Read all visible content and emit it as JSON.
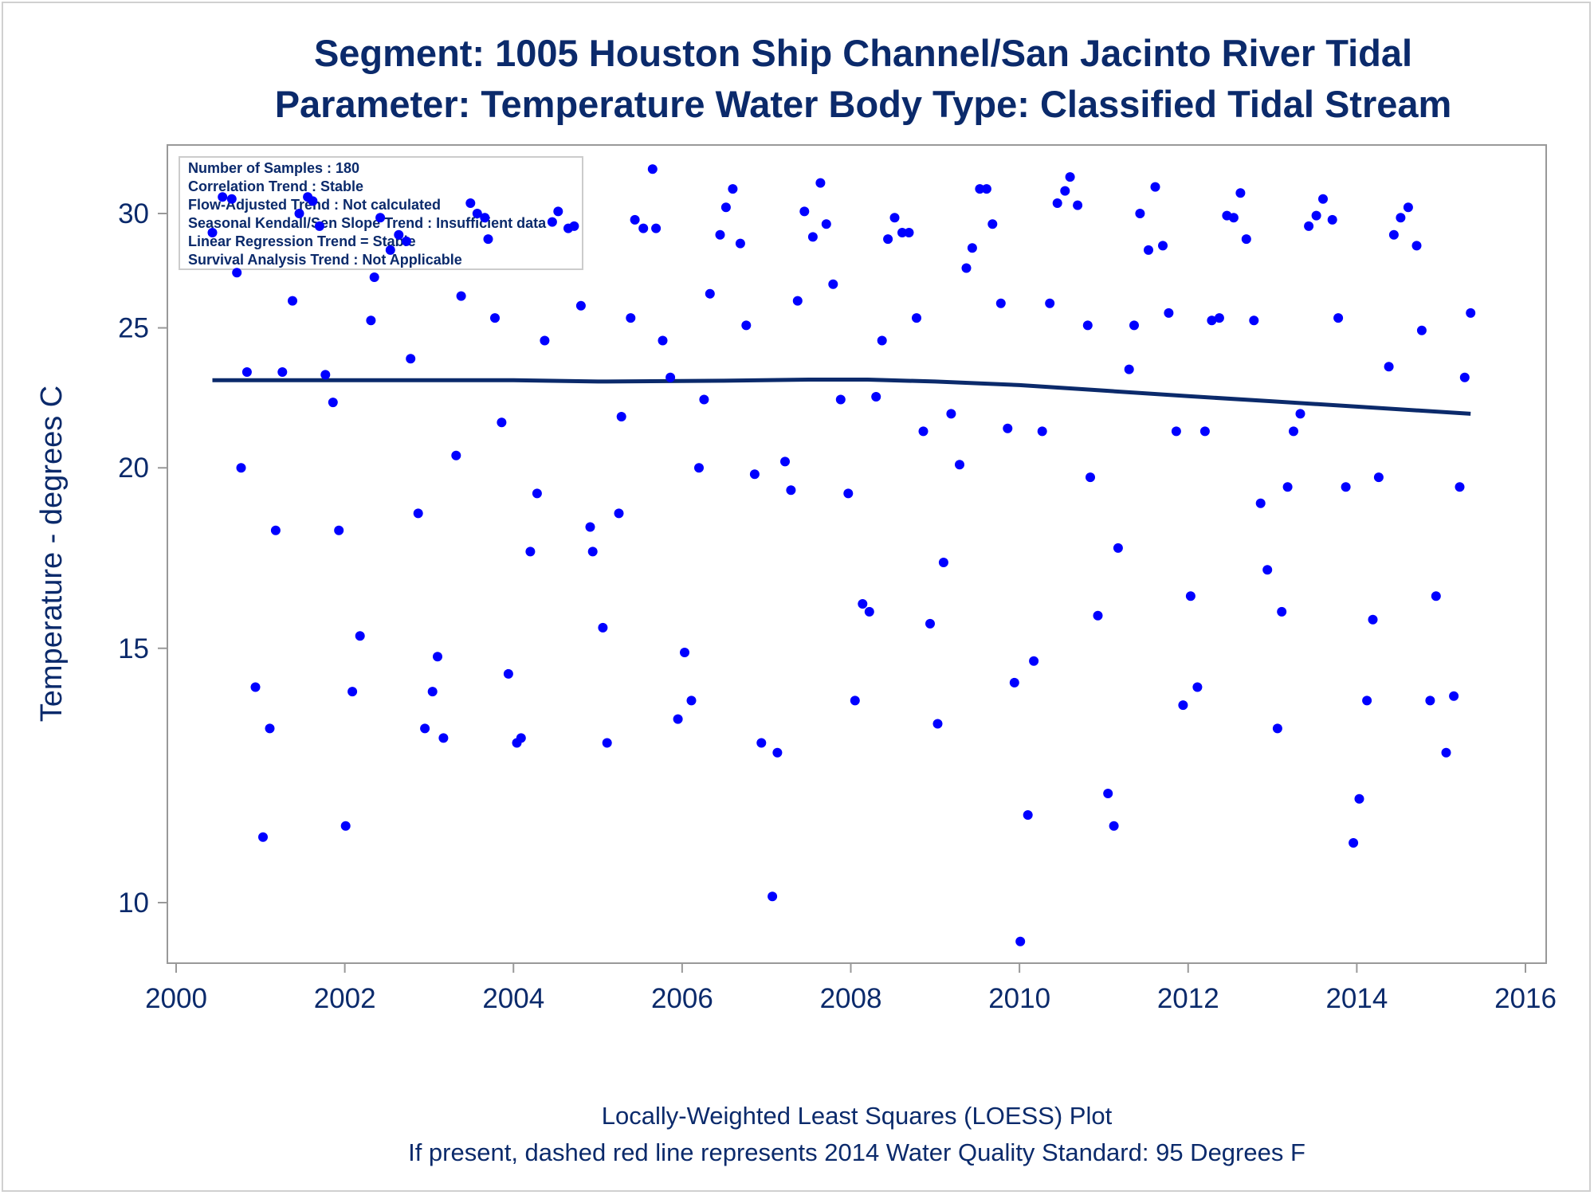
{
  "chart_data": {
    "type": "scatter",
    "title": "Segment: 1005  Houston Ship Channel/San Jacinto River Tidal",
    "subtitle": "Parameter: Temperature   Water Body Type: Classified Tidal Stream",
    "xlabel": "",
    "ylabel": "Temperature - degrees C",
    "x_ticks": [
      "2000",
      "2002",
      "2004",
      "2006",
      "2008",
      "2010",
      "2012",
      "2014",
      "2016"
    ],
    "y_ticks": [
      "10",
      "15",
      "20",
      "25",
      "30"
    ],
    "xlim": [
      2000,
      2016
    ],
    "ylim": [
      9.3,
      32.5
    ],
    "y_scale": "log",
    "grid": false,
    "info_box": [
      "Number of Samples : 180",
      "Correlation Trend : Stable",
      "Flow-Adjusted Trend : Not calculated",
      "Seasonal Kendall/Sen Slope Trend : Insufficient data",
      "Linear Regression Trend = Stable",
      "Survival Analysis Trend : Not Applicable"
    ],
    "footnotes": [
      "Locally-Weighted Least Squares (LOESS) Plot",
      "If present, dashed red line represents 2014 Water Quality Standard: 95   Degrees F"
    ],
    "colors": {
      "points": "#0000ff",
      "loess": "#0b2a6b",
      "text": "#0b2a6b",
      "axis": "#999999"
    },
    "series": [
      {
        "type": "scatter",
        "points": [
          [
            2000.43,
            29.1
          ],
          [
            2000.55,
            30.8
          ],
          [
            2000.66,
            30.7
          ],
          [
            2000.72,
            27.3
          ],
          [
            2000.77,
            20.0
          ],
          [
            2000.84,
            23.3
          ],
          [
            2000.94,
            14.1
          ],
          [
            2001.03,
            11.1
          ],
          [
            2001.11,
            13.2
          ],
          [
            2001.18,
            18.1
          ],
          [
            2001.26,
            23.3
          ],
          [
            2001.38,
            26.1
          ],
          [
            2001.46,
            30.0
          ],
          [
            2001.56,
            30.8
          ],
          [
            2001.62,
            30.6
          ],
          [
            2001.7,
            29.4
          ],
          [
            2001.77,
            23.2
          ],
          [
            2001.86,
            22.2
          ],
          [
            2001.93,
            18.1
          ],
          [
            2002.01,
            11.3
          ],
          [
            2002.09,
            14.0
          ],
          [
            2002.18,
            15.3
          ],
          [
            2002.31,
            25.3
          ],
          [
            2002.35,
            27.1
          ],
          [
            2002.42,
            29.8
          ],
          [
            2002.54,
            28.3
          ],
          [
            2002.64,
            29.0
          ],
          [
            2002.73,
            28.7
          ],
          [
            2002.78,
            23.8
          ],
          [
            2002.87,
            18.6
          ],
          [
            2002.95,
            13.2
          ],
          [
            2003.04,
            14.0
          ],
          [
            2003.1,
            14.8
          ],
          [
            2003.17,
            13.0
          ],
          [
            2003.32,
            20.4
          ],
          [
            2003.38,
            26.3
          ],
          [
            2003.49,
            30.5
          ],
          [
            2003.57,
            30.0
          ],
          [
            2003.66,
            29.8
          ],
          [
            2003.7,
            28.8
          ],
          [
            2003.78,
            25.4
          ],
          [
            2003.86,
            21.5
          ],
          [
            2003.94,
            14.4
          ],
          [
            2004.04,
            12.9
          ],
          [
            2004.09,
            13.0
          ],
          [
            2004.2,
            17.5
          ],
          [
            2004.28,
            19.2
          ],
          [
            2004.37,
            24.5
          ],
          [
            2004.46,
            29.6
          ],
          [
            2004.53,
            30.1
          ],
          [
            2004.65,
            29.3
          ],
          [
            2004.72,
            29.4
          ],
          [
            2004.8,
            25.9
          ],
          [
            2004.91,
            18.2
          ],
          [
            2004.94,
            17.5
          ],
          [
            2005.06,
            15.5
          ],
          [
            2005.11,
            12.9
          ],
          [
            2005.25,
            18.6
          ],
          [
            2005.28,
            21.7
          ],
          [
            2005.39,
            25.4
          ],
          [
            2005.44,
            29.7
          ],
          [
            2005.54,
            29.3
          ],
          [
            2005.65,
            32.2
          ],
          [
            2005.69,
            29.3
          ],
          [
            2005.77,
            24.5
          ],
          [
            2005.86,
            23.1
          ],
          [
            2005.95,
            13.4
          ],
          [
            2006.03,
            14.9
          ],
          [
            2006.11,
            13.8
          ],
          [
            2006.2,
            20.0
          ],
          [
            2006.26,
            22.3
          ],
          [
            2006.33,
            26.4
          ],
          [
            2006.45,
            29.0
          ],
          [
            2006.52,
            30.3
          ],
          [
            2006.6,
            31.2
          ],
          [
            2006.69,
            28.6
          ],
          [
            2006.76,
            25.1
          ],
          [
            2006.86,
            19.8
          ],
          [
            2006.94,
            12.9
          ],
          [
            2007.07,
            10.1
          ],
          [
            2007.13,
            12.7
          ],
          [
            2007.22,
            20.2
          ],
          [
            2007.29,
            19.3
          ],
          [
            2007.37,
            26.1
          ],
          [
            2007.45,
            30.1
          ],
          [
            2007.55,
            28.9
          ],
          [
            2007.64,
            31.5
          ],
          [
            2007.71,
            29.5
          ],
          [
            2007.79,
            26.8
          ],
          [
            2007.88,
            22.3
          ],
          [
            2007.97,
            19.2
          ],
          [
            2008.05,
            13.8
          ],
          [
            2008.14,
            16.1
          ],
          [
            2008.22,
            15.9
          ],
          [
            2008.3,
            22.4
          ],
          [
            2008.37,
            24.5
          ],
          [
            2008.44,
            28.8
          ],
          [
            2008.52,
            29.8
          ],
          [
            2008.61,
            29.1
          ],
          [
            2008.69,
            29.1
          ],
          [
            2008.78,
            25.4
          ],
          [
            2008.86,
            21.2
          ],
          [
            2008.94,
            15.6
          ],
          [
            2009.03,
            13.3
          ],
          [
            2009.1,
            17.2
          ],
          [
            2009.19,
            21.8
          ],
          [
            2009.29,
            20.1
          ],
          [
            2009.37,
            27.5
          ],
          [
            2009.44,
            28.4
          ],
          [
            2009.53,
            31.2
          ],
          [
            2009.61,
            31.2
          ],
          [
            2009.68,
            29.5
          ],
          [
            2009.78,
            26.0
          ],
          [
            2009.86,
            21.3
          ],
          [
            2009.94,
            14.2
          ],
          [
            2010.01,
            9.4
          ],
          [
            2010.1,
            11.5
          ],
          [
            2010.17,
            14.7
          ],
          [
            2010.27,
            21.2
          ],
          [
            2010.36,
            26.0
          ],
          [
            2010.45,
            30.5
          ],
          [
            2010.54,
            31.1
          ],
          [
            2010.6,
            31.8
          ],
          [
            2010.69,
            30.4
          ],
          [
            2010.81,
            25.1
          ],
          [
            2010.84,
            19.7
          ],
          [
            2010.93,
            15.8
          ],
          [
            2011.05,
            11.9
          ],
          [
            2011.12,
            11.3
          ],
          [
            2011.17,
            17.6
          ],
          [
            2011.3,
            23.4
          ],
          [
            2011.36,
            25.1
          ],
          [
            2011.43,
            30.0
          ],
          [
            2011.53,
            28.3
          ],
          [
            2011.61,
            31.3
          ],
          [
            2011.7,
            28.5
          ],
          [
            2011.77,
            25.6
          ],
          [
            2011.86,
            21.2
          ],
          [
            2011.94,
            13.7
          ],
          [
            2012.03,
            16.3
          ],
          [
            2012.11,
            14.1
          ],
          [
            2012.2,
            21.2
          ],
          [
            2012.28,
            25.3
          ],
          [
            2012.37,
            25.4
          ],
          [
            2012.46,
            29.9
          ],
          [
            2012.54,
            29.8
          ],
          [
            2012.62,
            31.0
          ],
          [
            2012.69,
            28.8
          ],
          [
            2012.78,
            25.3
          ],
          [
            2012.86,
            18.9
          ],
          [
            2012.94,
            17.0
          ],
          [
            2013.06,
            13.2
          ],
          [
            2013.11,
            15.9
          ],
          [
            2013.18,
            19.4
          ],
          [
            2013.25,
            21.2
          ],
          [
            2013.33,
            21.8
          ],
          [
            2013.43,
            29.4
          ],
          [
            2013.52,
            29.9
          ],
          [
            2013.6,
            30.7
          ],
          [
            2013.71,
            29.7
          ],
          [
            2013.78,
            25.4
          ],
          [
            2013.87,
            19.4
          ],
          [
            2013.96,
            11.0
          ],
          [
            2014.03,
            11.8
          ],
          [
            2014.12,
            13.8
          ],
          [
            2014.19,
            15.7
          ],
          [
            2014.26,
            19.7
          ],
          [
            2014.38,
            23.5
          ],
          [
            2014.44,
            29.0
          ],
          [
            2014.52,
            29.8
          ],
          [
            2014.61,
            30.3
          ],
          [
            2014.71,
            28.5
          ],
          [
            2014.77,
            24.9
          ],
          [
            2014.87,
            13.8
          ],
          [
            2014.94,
            16.3
          ],
          [
            2015.06,
            12.7
          ],
          [
            2015.15,
            13.9
          ],
          [
            2015.22,
            19.4
          ],
          [
            2015.28,
            23.1
          ],
          [
            2015.35,
            25.6
          ]
        ]
      },
      {
        "type": "line",
        "points": [
          [
            2000.43,
            23.0
          ],
          [
            2002.0,
            23.0
          ],
          [
            2004.0,
            23.0
          ],
          [
            2005.0,
            22.95
          ],
          [
            2006.5,
            22.98
          ],
          [
            2007.5,
            23.02
          ],
          [
            2008.2,
            23.02
          ],
          [
            2009.0,
            22.95
          ],
          [
            2010.0,
            22.82
          ],
          [
            2011.0,
            22.62
          ],
          [
            2012.0,
            22.42
          ],
          [
            2013.0,
            22.24
          ],
          [
            2014.0,
            22.05
          ],
          [
            2015.35,
            21.8
          ]
        ]
      }
    ]
  }
}
